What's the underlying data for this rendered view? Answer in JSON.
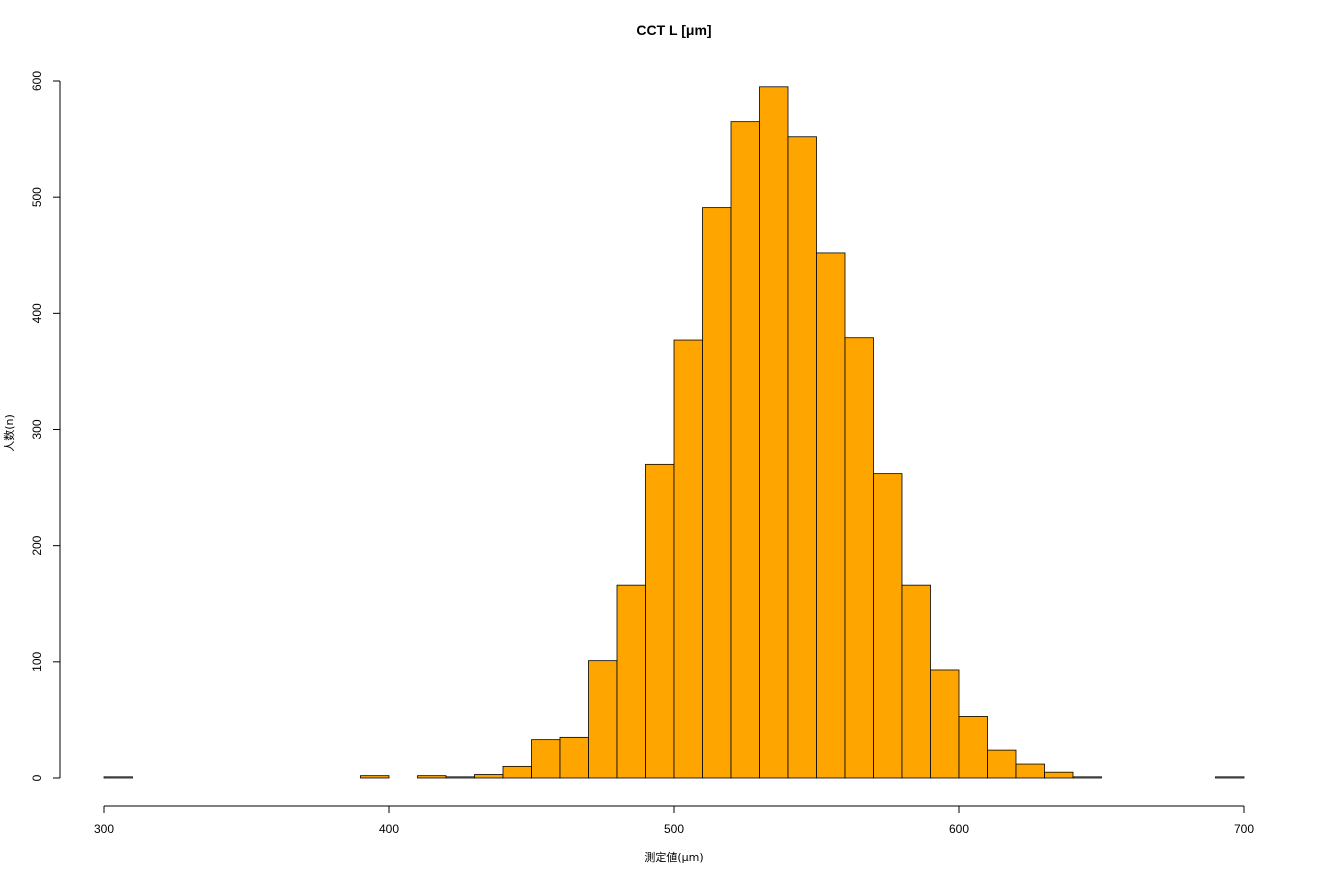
{
  "chart_data": {
    "type": "bar",
    "title": "CCT L [μm]",
    "xlabel": "測定値(μm)",
    "ylabel": "人数(n)",
    "xlim": [
      300,
      700
    ],
    "ylim": [
      0,
      600
    ],
    "bin_width": 10,
    "bin_starts": [
      300,
      310,
      320,
      330,
      340,
      350,
      360,
      370,
      380,
      390,
      400,
      410,
      420,
      430,
      440,
      450,
      460,
      470,
      480,
      490,
      500,
      510,
      520,
      530,
      540,
      550,
      560,
      570,
      580,
      590,
      600,
      610,
      620,
      630,
      640,
      650,
      660,
      670,
      680,
      690
    ],
    "values": [
      1,
      0,
      0,
      0,
      0,
      0,
      0,
      0,
      0,
      2,
      0,
      2,
      1,
      3,
      10,
      33,
      35,
      101,
      166,
      270,
      377,
      491,
      565,
      595,
      552,
      452,
      379,
      262,
      166,
      93,
      53,
      24,
      12,
      5,
      1,
      0,
      0,
      0,
      0,
      1
    ],
    "x_ticks": [
      300,
      400,
      500,
      600,
      700
    ],
    "y_ticks": [
      0,
      100,
      200,
      300,
      400,
      500,
      600
    ],
    "bar_color": "#FFA500",
    "bar_border_color": "#000000",
    "grid": false
  }
}
